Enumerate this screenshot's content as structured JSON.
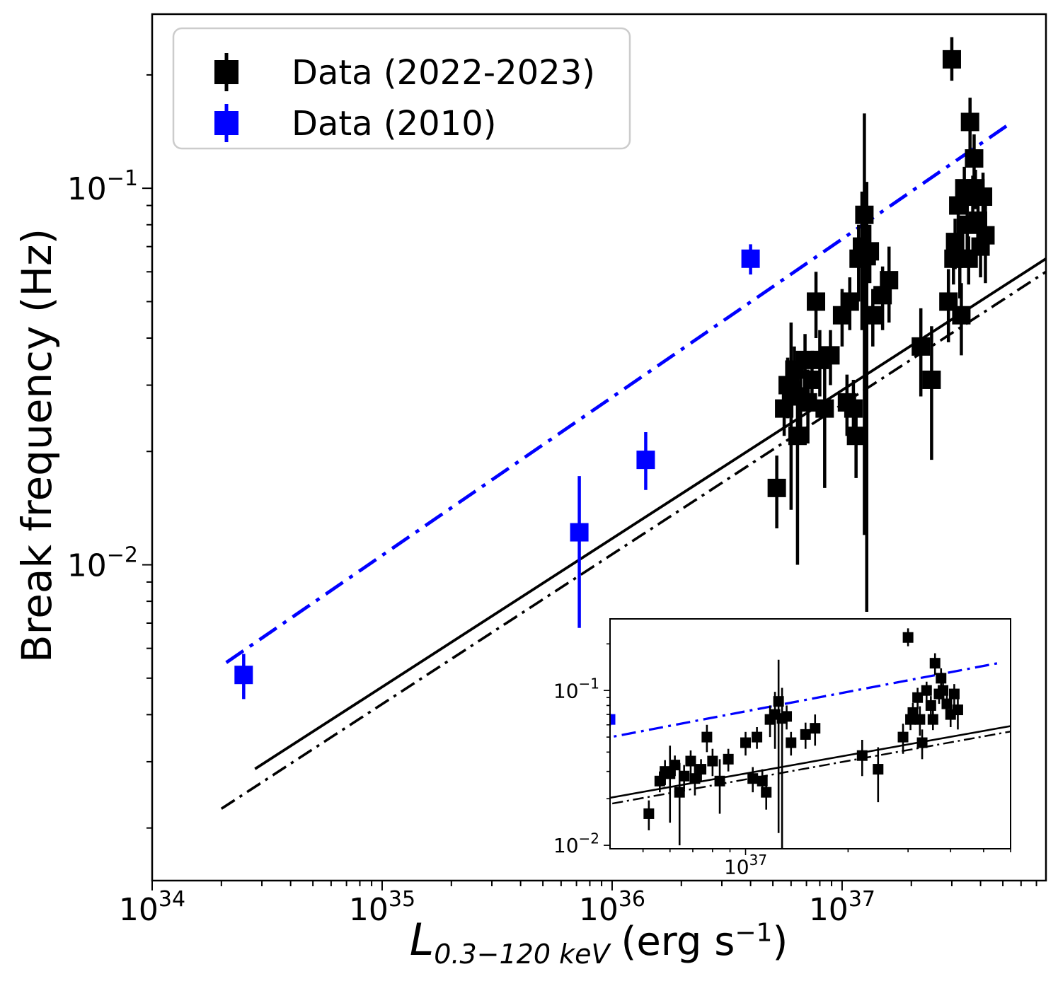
{
  "chart_data": {
    "type": "scatter",
    "title": "",
    "xlabel": "L_{0.3-120 keV} (erg s^-1)",
    "xlabel_parts": {
      "var": "L",
      "sub": "0.3−120 keV",
      "unit_pre": "(erg s",
      "unit_sup": "−1",
      "unit_post": ")"
    },
    "ylabel": "Break frequency (Hz)",
    "xscale": "log",
    "yscale": "log",
    "xlim": [
      1e+34,
      7.7e+37
    ],
    "ylim": [
      0.00145,
      0.29
    ],
    "x_major_ticks": [
      1e+34,
      1e+35,
      1e+36,
      1e+37
    ],
    "y_major_ticks": [
      0.01,
      0.1
    ],
    "grid": false,
    "legend": {
      "position": "upper-left",
      "entries": [
        {
          "label": "Data (2022-2023)",
          "color": "#000000"
        },
        {
          "label": "Data (2010)",
          "color": "#0000ff"
        }
      ]
    },
    "series": [
      {
        "name": "Data (2022-2023)",
        "color": "#000000",
        "marker": "square",
        "points": [
          [
            5.2e+36,
            0.016,
            0.0125,
            0.0195
          ],
          [
            5.6e+36,
            0.026,
            0.022,
            0.03
          ],
          [
            5.8e+36,
            0.03,
            0.0245,
            0.0355
          ],
          [
            6e+36,
            0.029,
            0.014,
            0.044
          ],
          [
            6.2e+36,
            0.033,
            0.028,
            0.038
          ],
          [
            6.4e+36,
            0.022,
            0.01,
            0.034
          ],
          [
            6.6e+36,
            0.028,
            0.023,
            0.033
          ],
          [
            6.9e+36,
            0.035,
            0.029,
            0.041
          ],
          [
            7.1e+36,
            0.027,
            0.021,
            0.033
          ],
          [
            7.4e+36,
            0.031,
            0.026,
            0.036
          ],
          [
            7.7e+36,
            0.05,
            0.04,
            0.06
          ],
          [
            8e+36,
            0.035,
            0.028,
            0.042
          ],
          [
            8.4e+36,
            0.026,
            0.016,
            0.036
          ],
          [
            8.9e+36,
            0.036,
            0.03,
            0.042
          ],
          [
            1e+37,
            0.046,
            0.038,
            0.054
          ],
          [
            1.05e+37,
            0.027,
            0.022,
            0.032
          ],
          [
            1.08e+37,
            0.05,
            0.042,
            0.058
          ],
          [
            1.12e+37,
            0.026,
            0.021,
            0.031
          ],
          [
            1.15e+37,
            0.022,
            0.017,
            0.027
          ],
          [
            1.18e+37,
            0.065,
            0.05,
            0.08
          ],
          [
            1.22e+37,
            0.07,
            0.042,
            0.098
          ],
          [
            1.25e+37,
            0.085,
            0.012,
            0.158
          ],
          [
            1.28e+37,
            0.066,
            0.0075,
            0.104
          ],
          [
            1.32e+37,
            0.068,
            0.056,
            0.08
          ],
          [
            1.36e+37,
            0.046,
            0.038,
            0.054
          ],
          [
            1.5e+37,
            0.052,
            0.042,
            0.062
          ],
          [
            1.6e+37,
            0.057,
            0.044,
            0.07
          ],
          [
            2.2e+37,
            0.038,
            0.028,
            0.048
          ],
          [
            2.45e+37,
            0.031,
            0.019,
            0.043
          ],
          [
            2.9e+37,
            0.05,
            0.039,
            0.061
          ],
          [
            3e+37,
            0.22,
            0.193,
            0.252
          ],
          [
            3.05e+37,
            0.065,
            0.0555,
            0.0745
          ],
          [
            3.1e+37,
            0.072,
            0.061,
            0.083
          ],
          [
            3.2e+37,
            0.09,
            0.076,
            0.104
          ],
          [
            3.25e+37,
            0.065,
            0.051,
            0.079
          ],
          [
            3.3e+37,
            0.046,
            0.036,
            0.056
          ],
          [
            3.4e+37,
            0.1,
            0.086,
            0.114
          ],
          [
            3.5e+37,
            0.08,
            0.068,
            0.092
          ],
          [
            3.55e+37,
            0.065,
            0.0555,
            0.0745
          ],
          [
            3.6e+37,
            0.15,
            0.126,
            0.174
          ],
          [
            3.7e+37,
            0.095,
            0.082,
            0.108
          ],
          [
            3.75e+37,
            0.12,
            0.101,
            0.139
          ],
          [
            3.8e+37,
            0.1,
            0.088,
            0.112
          ],
          [
            3.9e+37,
            0.082,
            0.07,
            0.094
          ],
          [
            4e+37,
            0.07,
            0.058,
            0.082
          ],
          [
            4.1e+37,
            0.095,
            0.08,
            0.11
          ],
          [
            4.2e+37,
            0.075,
            0.056,
            0.094
          ]
        ]
      },
      {
        "name": "Data (2010)",
        "color": "#0000ff",
        "marker": "square",
        "points": [
          [
            2.5e+34,
            0.0051,
            0.0044,
            0.0058
          ],
          [
            7.2e+35,
            0.0122,
            0.0068,
            0.0172
          ],
          [
            1.4e+36,
            0.019,
            0.0158,
            0.0225
          ],
          [
            4e+36,
            0.065,
            0.059,
            0.071
          ]
        ]
      }
    ],
    "fit_lines": [
      {
        "name": "fit-2022-2023-solid",
        "color": "#000000",
        "style": "solid",
        "lw": 1.0,
        "x": [
          2.8e+34,
          7.7e+37
        ],
        "y": [
          0.00287,
          0.065
        ]
      },
      {
        "name": "fit-2022-2023-dashdot",
        "color": "#000000",
        "style": "dashdot",
        "lw": 0.95,
        "x": [
          2e+34,
          7.7e+37
        ],
        "y": [
          0.00225,
          0.06
        ]
      },
      {
        "name": "fit-2010-dashdot",
        "color": "#0000ff",
        "style": "dashdot",
        "lw": 1.25,
        "x": [
          2.1e+34,
          5.5e+37
        ],
        "y": [
          0.0055,
          0.15
        ]
      }
    ],
    "inset": {
      "xlim": [
        4e+36,
        6e+37
      ],
      "ylim": [
        0.0095,
        0.29
      ],
      "x_major_ticks": [
        1e+37
      ],
      "y_major_ticks": [
        0.01,
        0.1
      ]
    }
  }
}
